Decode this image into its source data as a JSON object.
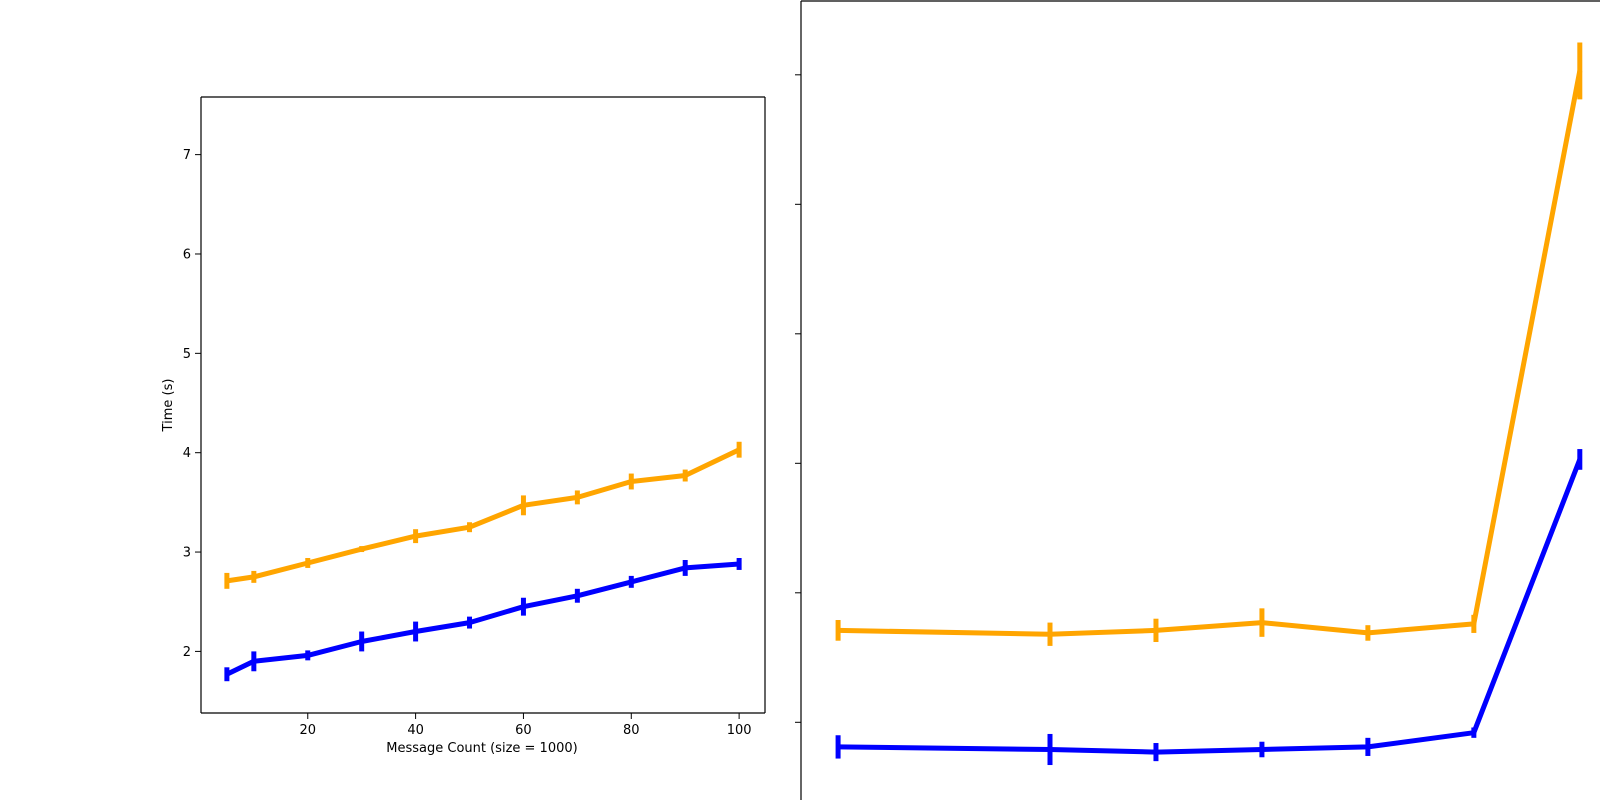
{
  "colors": {
    "blue": "#0000ff",
    "orange": "#ffa500"
  },
  "chart_data": [
    {
      "type": "line",
      "title": "",
      "xlabel": "Message Count (size = 1000)",
      "ylabel": "Time (s)",
      "xlim": [
        0.2,
        104.8
      ],
      "ylim": [
        1.38,
        7.58
      ],
      "xticks": [
        20,
        40,
        60,
        80,
        100
      ],
      "yticks": [
        2,
        3,
        4,
        5,
        6,
        7
      ],
      "grid": false,
      "series": [
        {
          "color": "#ffa500",
          "x": [
            5,
            10,
            20,
            30,
            40,
            50,
            60,
            70,
            80,
            90,
            100
          ],
          "y": [
            2.71,
            2.75,
            2.89,
            3.03,
            3.16,
            3.25,
            3.47,
            3.55,
            3.71,
            3.77,
            4.03
          ],
          "err": [
            0.08,
            0.06,
            0.05,
            0.03,
            0.07,
            0.05,
            0.1,
            0.07,
            0.08,
            0.06,
            0.08
          ]
        },
        {
          "color": "#0000ff",
          "x": [
            5,
            10,
            20,
            30,
            40,
            50,
            60,
            70,
            80,
            90,
            100
          ],
          "y": [
            1.77,
            1.9,
            1.96,
            2.1,
            2.2,
            2.29,
            2.45,
            2.56,
            2.7,
            2.84,
            2.88
          ],
          "err": [
            0.07,
            0.1,
            0.05,
            0.1,
            0.1,
            0.06,
            0.09,
            0.07,
            0.06,
            0.08,
            0.06
          ]
        }
      ]
    },
    {
      "type": "line",
      "title": "",
      "xlabel": "",
      "ylabel": "",
      "xlim": [
        0,
        7.55
      ],
      "ylim": [
        0,
        6.17
      ],
      "yticks": [
        0.6,
        1.6,
        2.6,
        3.6,
        4.6,
        5.6
      ],
      "grid": false,
      "series": [
        {
          "color": "#ffa500",
          "x": [
            0.35,
            2.35,
            3.35,
            4.35,
            5.35,
            6.35,
            7.35
          ],
          "y": [
            1.31,
            1.28,
            1.31,
            1.37,
            1.29,
            1.36,
            5.63
          ],
          "err": [
            0.08,
            0.09,
            0.09,
            0.11,
            0.06,
            0.07,
            0.22
          ]
        },
        {
          "color": "#0000ff",
          "x": [
            0.35,
            2.35,
            3.35,
            4.35,
            5.35,
            6.35,
            7.35
          ],
          "y": [
            0.41,
            0.39,
            0.37,
            0.39,
            0.41,
            0.52,
            2.63
          ],
          "err": [
            0.09,
            0.12,
            0.07,
            0.06,
            0.07,
            0.04,
            0.08
          ]
        }
      ]
    }
  ]
}
